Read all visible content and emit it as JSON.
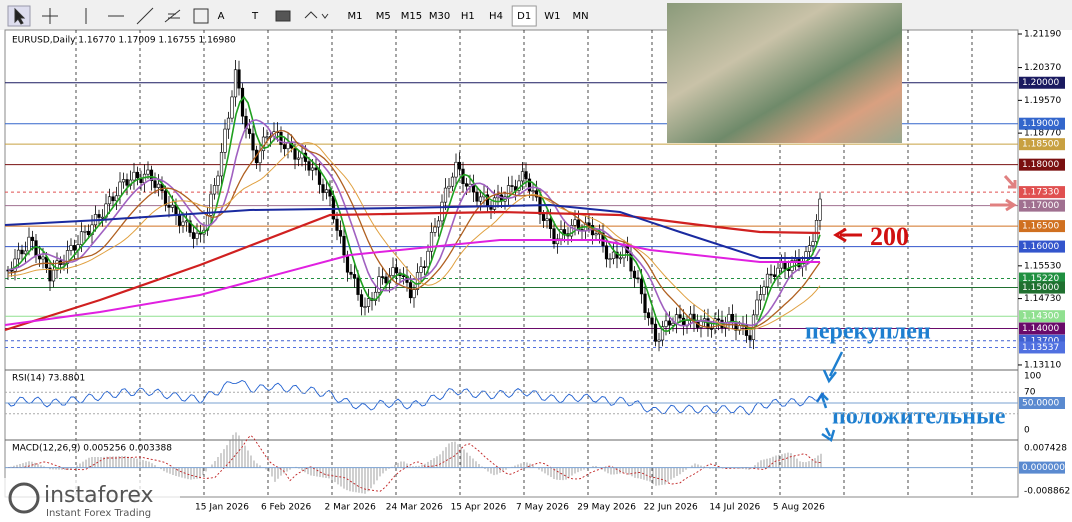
{
  "toolbar": {
    "tools": [
      "A",
      "T"
    ],
    "timeframes": [
      "M1",
      "M5",
      "M15",
      "M30",
      "H1",
      "H4",
      "D1",
      "W1",
      "MN"
    ],
    "active": "D1"
  },
  "chart": {
    "header": "EURUSD,Daily  1.16770 1.17009 1.16755 1.16980",
    "axis_labels": [
      "1.21190",
      "1.20370",
      "1.19570",
      "1.18770",
      "1.15530",
      "1.14730",
      "1.13110"
    ],
    "levels": [
      {
        "label": "1.20000",
        "color": "#1a1a60"
      },
      {
        "label": "1.19000",
        "color": "#3366cc"
      },
      {
        "label": "1.18500",
        "color": "#c8a040"
      },
      {
        "label": "1.18000",
        "color": "#7a1010"
      },
      {
        "label": "1.17330",
        "color": "#e05050"
      },
      {
        "label": "1.17000",
        "color": "#a07090"
      },
      {
        "label": "1.16500",
        "color": "#d07020"
      },
      {
        "label": "1.16000",
        "color": "#3355cc"
      },
      {
        "label": "1.15220",
        "color": "#209040"
      },
      {
        "label": "1.15000",
        "color": "#207030"
      },
      {
        "label": "1.14300",
        "color": "#90e090"
      },
      {
        "label": "1.14000",
        "color": "#6a0a6a"
      },
      {
        "label": "1.13700",
        "color": "#4060d0"
      },
      {
        "label": "1.13537",
        "color": "#5070e0"
      }
    ],
    "dates": [
      "15 Jan 2026",
      "6 Feb 2026",
      "2 Mar 2026",
      "24 Mar 2026",
      "15 Apr 2026",
      "7 May 2026",
      "29 May 2026",
      "22 Jun 2026",
      "14 Jul 2026",
      "5 Aug 2026"
    ],
    "annotations": {
      "ma": "200",
      "overbought": "перекуплен",
      "positive": "положительные"
    }
  },
  "rsi": {
    "label": "RSI(14) 73.8801",
    "ticks": [
      "100",
      "70",
      "0"
    ],
    "level": "50.0000"
  },
  "macd": {
    "label": "MACD(12,26,9) 0.005256 0.003388",
    "ticks": [
      "0.007428",
      "-0.008862"
    ],
    "level": "0.000000"
  },
  "logo": {
    "name": "instaforex",
    "tagline": "Instant Forex Trading"
  }
}
